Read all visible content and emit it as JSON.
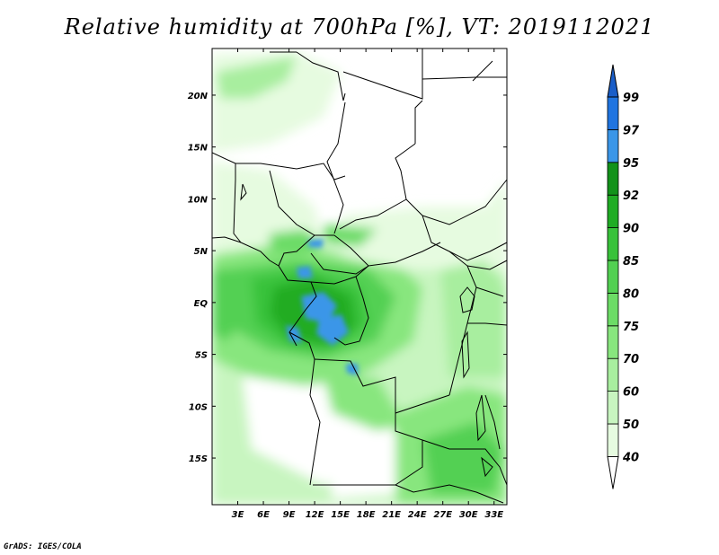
{
  "title": "Relative humidity at 700hPa [%], VT: 2019112021",
  "footer": "GrADS: IGES/COLA",
  "map": {
    "lat_labels": [
      "20N",
      "15N",
      "10N",
      "5N",
      "EQ",
      "5S",
      "10S",
      "15S"
    ],
    "lon_labels": [
      "3E",
      "6E",
      "9E",
      "12E",
      "15E",
      "18E",
      "21E",
      "24E",
      "27E",
      "30E",
      "33E"
    ],
    "lat_range": [
      -19.5,
      24.5
    ],
    "lon_range": [
      0,
      34.5
    ]
  },
  "colorbar": {
    "levels": [
      "40",
      "50",
      "60",
      "70",
      "75",
      "80",
      "85",
      "90",
      "92",
      "95",
      "97",
      "99"
    ],
    "colors": [
      "#ffffff",
      "#e6fbe0",
      "#c8f5c0",
      "#a8ee9f",
      "#88e67e",
      "#6cdc66",
      "#52d052",
      "#38c23a",
      "#20ac24",
      "#12921a",
      "#3a96e8",
      "#2074e0",
      "#1a5ec8"
    ]
  }
}
